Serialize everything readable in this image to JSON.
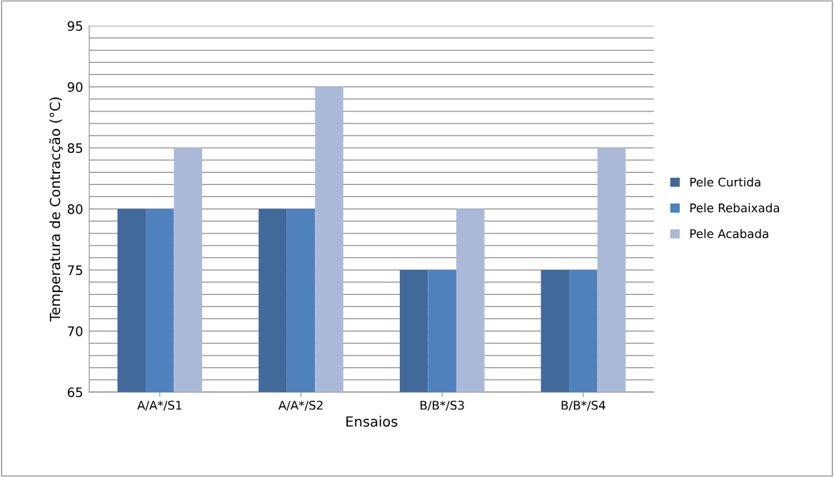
{
  "chart_data": {
    "type": "bar",
    "xlabel": "Ensaios",
    "ylabel": "Temperatura de Contracção (°C)",
    "categories": [
      "A/A*/S1",
      "A/A*/S2",
      "B/B*/S3",
      "B/B*/S4"
    ],
    "series": [
      {
        "name": "Pele Curtida",
        "color": "#416a9b",
        "values": [
          80,
          80,
          75,
          75
        ]
      },
      {
        "name": "Pele Rebaixada",
        "color": "#4f81bd",
        "values": [
          80,
          80,
          75,
          75
        ]
      },
      {
        "name": "Pele Acabada",
        "color": "#aab9d8",
        "values": [
          85,
          90,
          80,
          85
        ]
      }
    ],
    "ylim": [
      65,
      95
    ],
    "yticks": [
      65,
      {
        "value": 66,
        "label": null
      },
      {
        "value": 67,
        "label": null
      },
      {
        "value": 68,
        "label": null
      },
      {
        "value": 69,
        "label": null
      },
      70,
      {
        "value": 71,
        "label": null
      },
      {
        "value": 72,
        "label": null
      },
      {
        "value": 73,
        "label": null
      },
      {
        "value": 74,
        "label": null
      },
      75,
      {
        "value": 76,
        "label": null
      },
      {
        "value": 77,
        "label": null
      },
      {
        "value": 78,
        "label": null
      },
      {
        "value": 79,
        "label": null
      },
      80,
      {
        "value": 81,
        "label": null
      },
      {
        "value": 82,
        "label": null
      },
      {
        "value": 83,
        "label": null
      },
      {
        "value": 84,
        "label": null
      },
      85,
      {
        "value": 86,
        "label": null
      },
      {
        "value": 87,
        "label": null
      },
      {
        "value": 88,
        "label": null
      },
      {
        "value": 89,
        "label": null
      },
      90,
      {
        "value": 91,
        "label": null
      },
      {
        "value": 92,
        "label": null
      },
      {
        "value": 93,
        "label": null
      },
      {
        "value": 94,
        "label": null
      },
      95
    ],
    "grid": "y",
    "legend": "right"
  }
}
